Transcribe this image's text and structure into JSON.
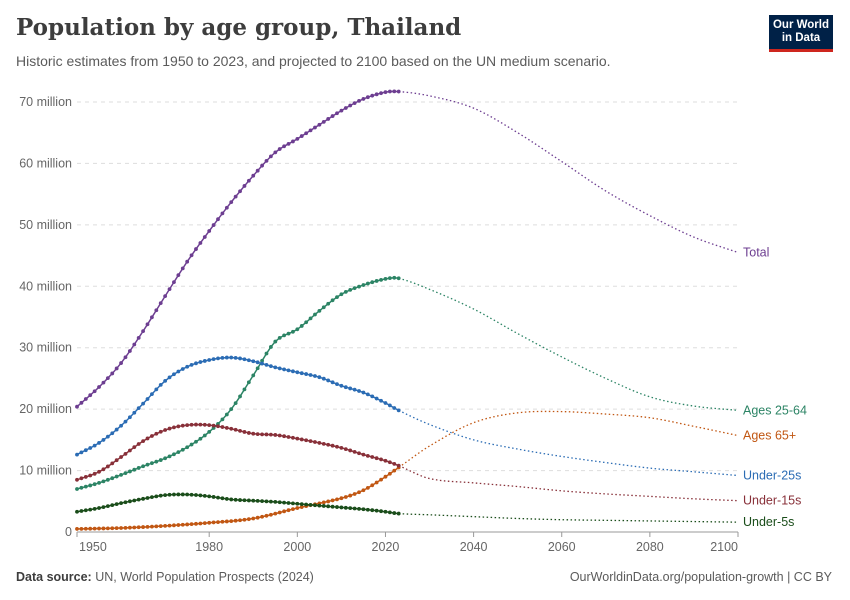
{
  "header": {
    "title": "Population by age group, Thailand",
    "subtitle": "Historic estimates from 1950 to 2023, and projected to 2100 based on the UN medium scenario."
  },
  "logo": {
    "line1": "Our World",
    "line2": "in Data"
  },
  "footer": {
    "source_label": "Data source:",
    "source_text": "UN, World Population Prospects (2024)",
    "url_text": "OurWorldinData.org/population-growth | CC BY"
  },
  "chart_data": {
    "type": "line",
    "title": "Population by age group, Thailand",
    "subtitle": "Historic estimates from 1950 to 2023, and projected to 2100 based on the UN medium scenario.",
    "xlabel": "",
    "ylabel": "",
    "xlim": [
      1950,
      2100
    ],
    "ylim": [
      0,
      70000000
    ],
    "x_ticks": [
      1950,
      1980,
      2000,
      2020,
      2040,
      2060,
      2080,
      2100
    ],
    "y_ticks": [
      {
        "value": 0,
        "label": "0"
      },
      {
        "value": 10000000,
        "label": "10 million"
      },
      {
        "value": 20000000,
        "label": "20 million"
      },
      {
        "value": 30000000,
        "label": "30 million"
      },
      {
        "value": 40000000,
        "label": "40 million"
      },
      {
        "value": 50000000,
        "label": "50 million"
      },
      {
        "value": 60000000,
        "label": "60 million"
      },
      {
        "value": 70000000,
        "label": "70 million"
      }
    ],
    "grid": "horizontal dashed",
    "legend": "labels at right end of lines",
    "historic_end_year": 2023,
    "series": [
      {
        "name": "Total",
        "color": "#6d3e91",
        "points": [
          [
            1950,
            20400000
          ],
          [
            1955,
            23600000
          ],
          [
            1960,
            27500000
          ],
          [
            1965,
            32700000
          ],
          [
            1970,
            38400000
          ],
          [
            1975,
            44000000
          ],
          [
            1980,
            49000000
          ],
          [
            1985,
            53700000
          ],
          [
            1990,
            58000000
          ],
          [
            1995,
            61800000
          ],
          [
            2000,
            64000000
          ],
          [
            2005,
            66300000
          ],
          [
            2010,
            68600000
          ],
          [
            2015,
            70500000
          ],
          [
            2020,
            71600000
          ],
          [
            2023,
            71700000
          ],
          [
            2030,
            71000000
          ],
          [
            2040,
            69000000
          ],
          [
            2050,
            65000000
          ],
          [
            2060,
            60300000
          ],
          [
            2070,
            55500000
          ],
          [
            2080,
            51500000
          ],
          [
            2090,
            48000000
          ],
          [
            2100,
            45500000
          ]
        ]
      },
      {
        "name": "Ages 25-64",
        "color": "#2c8465",
        "points": [
          [
            1950,
            7000000
          ],
          [
            1955,
            8000000
          ],
          [
            1960,
            9300000
          ],
          [
            1965,
            10700000
          ],
          [
            1970,
            12000000
          ],
          [
            1975,
            13800000
          ],
          [
            1980,
            16300000
          ],
          [
            1985,
            20000000
          ],
          [
            1990,
            25500000
          ],
          [
            1995,
            31000000
          ],
          [
            2000,
            33000000
          ],
          [
            2005,
            36000000
          ],
          [
            2010,
            38700000
          ],
          [
            2015,
            40200000
          ],
          [
            2020,
            41200000
          ],
          [
            2023,
            41300000
          ],
          [
            2030,
            39500000
          ],
          [
            2040,
            36300000
          ],
          [
            2050,
            32300000
          ],
          [
            2060,
            28500000
          ],
          [
            2070,
            25000000
          ],
          [
            2080,
            22000000
          ],
          [
            2090,
            20500000
          ],
          [
            2100,
            19800000
          ]
        ]
      },
      {
        "name": "Ages 65+",
        "color": "#c15713",
        "points": [
          [
            1950,
            500000
          ],
          [
            1960,
            650000
          ],
          [
            1970,
            1000000
          ],
          [
            1980,
            1500000
          ],
          [
            1990,
            2200000
          ],
          [
            2000,
            3900000
          ],
          [
            2010,
            5500000
          ],
          [
            2015,
            6800000
          ],
          [
            2020,
            9000000
          ],
          [
            2023,
            10500000
          ],
          [
            2030,
            14000000
          ],
          [
            2040,
            17800000
          ],
          [
            2050,
            19400000
          ],
          [
            2060,
            19600000
          ],
          [
            2070,
            19200000
          ],
          [
            2080,
            18600000
          ],
          [
            2090,
            17200000
          ],
          [
            2100,
            15700000
          ]
        ]
      },
      {
        "name": "Under-25s",
        "color": "#2b6cb4",
        "points": [
          [
            1950,
            12600000
          ],
          [
            1955,
            14500000
          ],
          [
            1960,
            17300000
          ],
          [
            1965,
            20900000
          ],
          [
            1970,
            24600000
          ],
          [
            1975,
            26900000
          ],
          [
            1980,
            28000000
          ],
          [
            1985,
            28400000
          ],
          [
            1990,
            27800000
          ],
          [
            1995,
            26800000
          ],
          [
            2000,
            26000000
          ],
          [
            2005,
            25200000
          ],
          [
            2010,
            23800000
          ],
          [
            2015,
            22700000
          ],
          [
            2020,
            21000000
          ],
          [
            2023,
            19800000
          ],
          [
            2030,
            17500000
          ],
          [
            2040,
            15000000
          ],
          [
            2050,
            13500000
          ],
          [
            2060,
            12300000
          ],
          [
            2070,
            11300000
          ],
          [
            2080,
            10400000
          ],
          [
            2090,
            9800000
          ],
          [
            2100,
            9200000
          ]
        ]
      },
      {
        "name": "Under-15s",
        "color": "#883039",
        "points": [
          [
            1950,
            8500000
          ],
          [
            1955,
            9800000
          ],
          [
            1960,
            12200000
          ],
          [
            1965,
            14800000
          ],
          [
            1970,
            16600000
          ],
          [
            1975,
            17400000
          ],
          [
            1980,
            17400000
          ],
          [
            1985,
            16800000
          ],
          [
            1990,
            16000000
          ],
          [
            1995,
            15800000
          ],
          [
            2000,
            15200000
          ],
          [
            2005,
            14500000
          ],
          [
            2010,
            13700000
          ],
          [
            2015,
            12600000
          ],
          [
            2020,
            11600000
          ],
          [
            2023,
            10800000
          ],
          [
            2030,
            8700000
          ],
          [
            2040,
            8000000
          ],
          [
            2050,
            7400000
          ],
          [
            2060,
            6700000
          ],
          [
            2070,
            6200000
          ],
          [
            2080,
            5800000
          ],
          [
            2090,
            5400000
          ],
          [
            2100,
            5100000
          ]
        ]
      },
      {
        "name": "Under-5s",
        "color": "#1a4d1a",
        "points": [
          [
            1950,
            3300000
          ],
          [
            1955,
            3900000
          ],
          [
            1960,
            4700000
          ],
          [
            1965,
            5400000
          ],
          [
            1970,
            6000000
          ],
          [
            1975,
            6100000
          ],
          [
            1980,
            5800000
          ],
          [
            1985,
            5300000
          ],
          [
            1990,
            5100000
          ],
          [
            1995,
            4900000
          ],
          [
            2000,
            4600000
          ],
          [
            2005,
            4300000
          ],
          [
            2010,
            4000000
          ],
          [
            2015,
            3700000
          ],
          [
            2020,
            3300000
          ],
          [
            2023,
            3000000
          ],
          [
            2030,
            2800000
          ],
          [
            2040,
            2500000
          ],
          [
            2050,
            2200000
          ],
          [
            2060,
            2000000
          ],
          [
            2070,
            1900000
          ],
          [
            2080,
            1800000
          ],
          [
            2090,
            1700000
          ],
          [
            2100,
            1600000
          ]
        ]
      }
    ]
  }
}
